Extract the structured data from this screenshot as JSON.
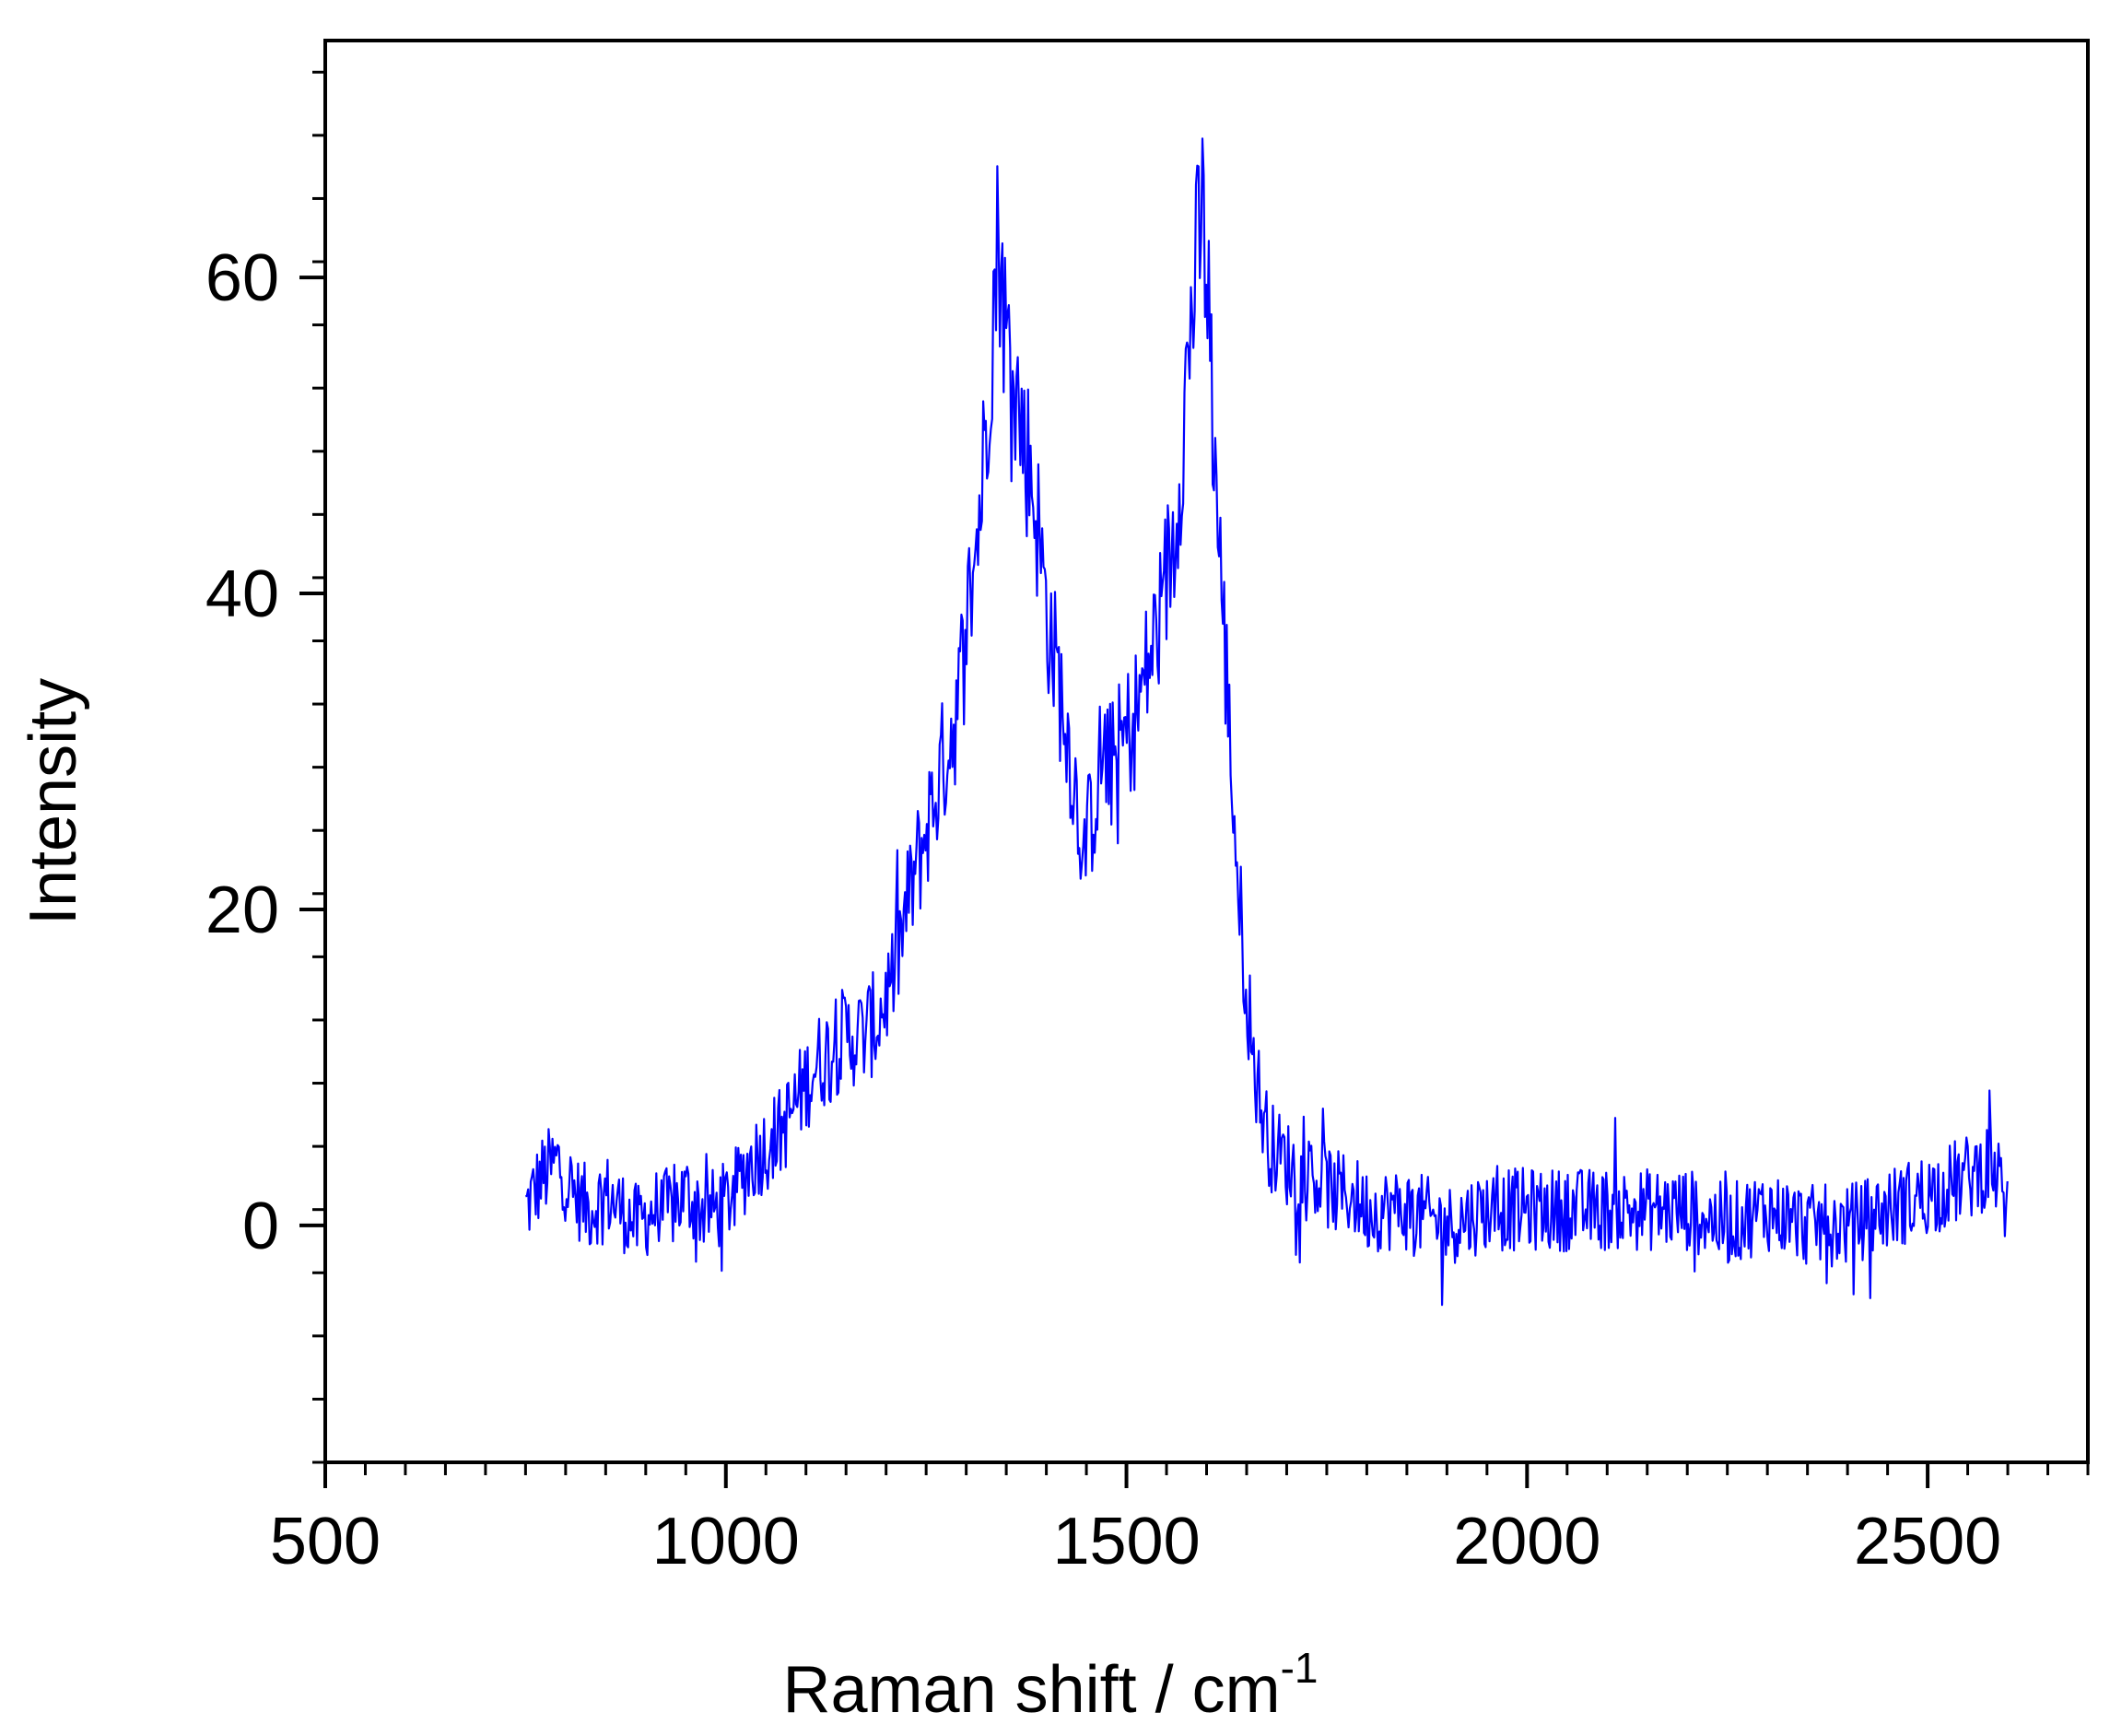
{
  "chart_data": {
    "type": "line",
    "title": "",
    "xlabel": "Raman shift / cm",
    "xlabel_superscript": "-1",
    "ylabel": "Intensity",
    "xlim": [
      500,
      2700
    ],
    "ylim": [
      -15,
      75
    ],
    "x_ticks": [
      500,
      1000,
      1500,
      2000,
      2500
    ],
    "x_tick_labels": [
      "500",
      "1000",
      "1500",
      "2000",
      "2500"
    ],
    "y_ticks": [
      0,
      20,
      40,
      60
    ],
    "y_tick_labels": [
      "0",
      "20",
      "40",
      "60"
    ],
    "x_minor_step": 50,
    "y_minor_step": 4,
    "grid": false,
    "legend": "none",
    "line_color": "#0000ff",
    "x_range": [
      750,
      2600
    ],
    "series": [
      {
        "color": "#0000ff",
        "x": [
          750,
          770,
          790,
          810,
          830,
          850,
          870,
          890,
          910,
          930,
          950,
          970,
          990,
          1010,
          1030,
          1050,
          1070,
          1090,
          1110,
          1130,
          1150,
          1170,
          1190,
          1210,
          1230,
          1250,
          1270,
          1290,
          1300,
          1310,
          1320,
          1330,
          1340,
          1350,
          1360,
          1370,
          1380,
          1390,
          1400,
          1410,
          1420,
          1430,
          1440,
          1450,
          1460,
          1470,
          1480,
          1490,
          1500,
          1510,
          1520,
          1530,
          1540,
          1550,
          1560,
          1570,
          1580,
          1590,
          1595,
          1600,
          1610,
          1620,
          1630,
          1640,
          1650,
          1660,
          1670,
          1680,
          1700,
          1720,
          1740,
          1760,
          1780,
          1800,
          1850,
          1900,
          1950,
          2000,
          2050,
          2100,
          2150,
          2200,
          2250,
          2300,
          2350,
          2400,
          2450,
          2500,
          2550,
          2580,
          2600
        ],
        "y": [
          1,
          3,
          4,
          2,
          1,
          2,
          1,
          0,
          1,
          1,
          2,
          1,
          1,
          2,
          4,
          5,
          6,
          8,
          10,
          11,
          12,
          12,
          13,
          16,
          21,
          25,
          29,
          33,
          38,
          42,
          47,
          55,
          63,
          56,
          54,
          50,
          48,
          44,
          39,
          36,
          33,
          30,
          26,
          24,
          27,
          30,
          29,
          30,
          31,
          32,
          34,
          36,
          38,
          41,
          44,
          50,
          57,
          62,
          64,
          60,
          49,
          39,
          30,
          21,
          15,
          10,
          7,
          5,
          4,
          3,
          3,
          2,
          2,
          1,
          1,
          0,
          1,
          1,
          1,
          1,
          1,
          1,
          0,
          1,
          0,
          0,
          1,
          2,
          3,
          4,
          1
        ]
      }
    ]
  }
}
